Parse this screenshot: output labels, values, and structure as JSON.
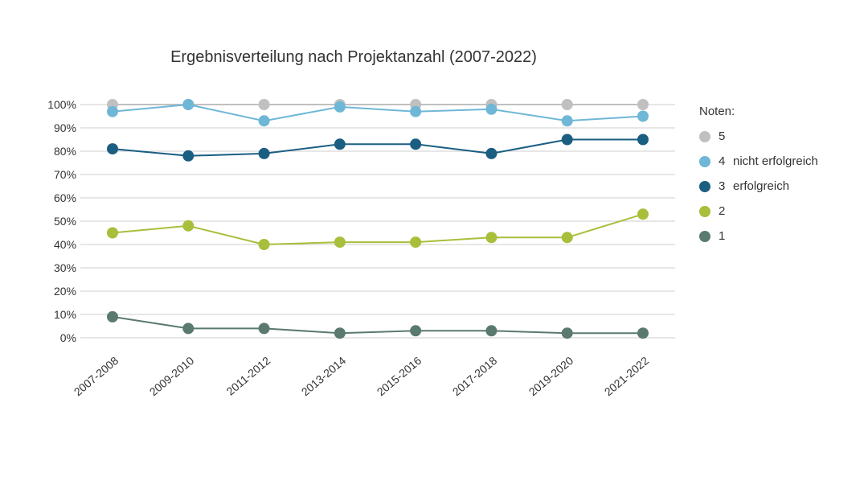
{
  "chart": {
    "type": "line",
    "title": "Ergebnisverteilung nach Projektanzahl (2007-2022)",
    "title_fontsize": 20,
    "background_color": "#ffffff",
    "categories": [
      "2007-2008",
      "2009-2010",
      "2011-2012",
      "2013-2014",
      "2015-2016",
      "2017-2018",
      "2019-2020",
      "2021-2022"
    ],
    "ylim": [
      0,
      100
    ],
    "ytick_step": 10,
    "y_suffix": "%",
    "grid_color": "#999999",
    "axis_label_fontsize": 14,
    "x_label_rotation_deg": -40,
    "marker_radius": 7,
    "line_width": 2,
    "series": [
      {
        "id": "s5",
        "label_num": "5",
        "label_text": "",
        "color": "#c0c0c0",
        "values": [
          100,
          100,
          100,
          100,
          100,
          100,
          100,
          100
        ]
      },
      {
        "id": "s4",
        "label_num": "4",
        "label_text": "nicht erfolgreich",
        "color": "#6fb7d6",
        "values": [
          97,
          100,
          93,
          99,
          97,
          98,
          93,
          95
        ]
      },
      {
        "id": "s3",
        "label_num": "3",
        "label_text": "erfolgreich",
        "color": "#1a5e82",
        "values": [
          81,
          78,
          79,
          83,
          83,
          79,
          85,
          85
        ]
      },
      {
        "id": "s2",
        "label_num": "2",
        "label_text": "",
        "color": "#a7bf3a",
        "values": [
          45,
          48,
          40,
          41,
          41,
          43,
          43,
          53
        ]
      },
      {
        "id": "s1",
        "label_num": "1",
        "label_text": "",
        "color": "#5a7a6f",
        "values": [
          9,
          4,
          4,
          2,
          3,
          3,
          2,
          2
        ]
      }
    ],
    "legend": {
      "title": "Noten:",
      "fontsize": 15
    }
  }
}
